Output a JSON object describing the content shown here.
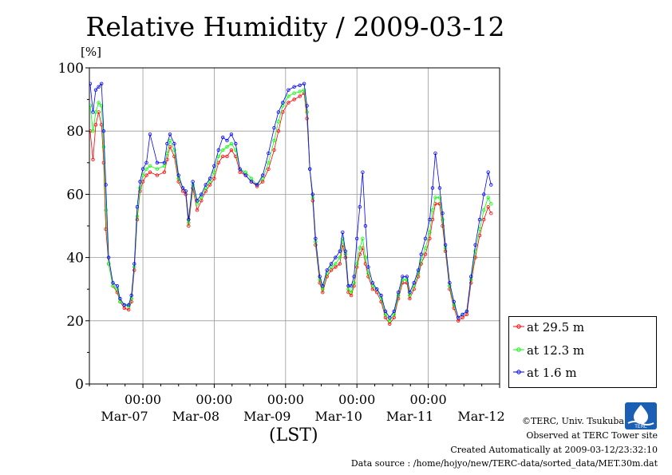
{
  "header": {
    "title": "Relative Humidity / 2009-03-12",
    "unit_label": "[%]",
    "x_axis_label": "(LST)"
  },
  "footer": {
    "copyright": "©TERC, Univ. Tsukuba",
    "observed": "Observed at TERC Tower site",
    "created": "Created Automatically at 2009-03-12/23:32:10",
    "source": "Data source : /home/hojyo/new/TERC-data/sorted_data/MET.30m.dat",
    "logo_text": "TERC"
  },
  "chart_data": {
    "type": "line",
    "title": "Relative Humidity / 2009-03-12",
    "xlabel": "(LST)",
    "ylabel": "[%]",
    "ylim": [
      0,
      100
    ],
    "xlim": [
      -0.75,
      5.0
    ],
    "x_unit": "days (0 = 2009-03-07 00:00)",
    "y_ticks": [
      0,
      20,
      40,
      60,
      80,
      100
    ],
    "x_ticks": [
      {
        "x": 0,
        "time": "00:00",
        "date": "Mar-07"
      },
      {
        "x": 1,
        "time": "00:00",
        "date": "Mar-08"
      },
      {
        "x": 2,
        "time": "00:00",
        "date": "Mar-09"
      },
      {
        "x": 3,
        "time": "00:00",
        "date": "Mar-10"
      },
      {
        "x": 4,
        "time": "00:00",
        "date": "Mar-11"
      },
      {
        "x": 5,
        "time": "",
        "date": "Mar-12"
      }
    ],
    "grid": true,
    "legend_position": "right, outside plot, lower",
    "series": [
      {
        "name": "at 29.5 m",
        "color": "#ff0000",
        "points": [
          [
            -0.74,
            80
          ],
          [
            -0.7,
            71
          ],
          [
            -0.66,
            82
          ],
          [
            -0.62,
            86
          ],
          [
            -0.58,
            82
          ],
          [
            -0.55,
            70
          ],
          [
            -0.52,
            49
          ],
          [
            -0.48,
            38
          ],
          [
            -0.42,
            31
          ],
          [
            -0.36,
            29
          ],
          [
            -0.32,
            26
          ],
          [
            -0.26,
            24
          ],
          [
            -0.2,
            23.5
          ],
          [
            -0.16,
            26
          ],
          [
            -0.12,
            36
          ],
          [
            -0.08,
            52
          ],
          [
            -0.04,
            61
          ],
          [
            0,
            64
          ],
          [
            0.05,
            66
          ],
          [
            0.1,
            67
          ],
          [
            0.2,
            66
          ],
          [
            0.3,
            67
          ],
          [
            0.34,
            71
          ],
          [
            0.38,
            75
          ],
          [
            0.44,
            72
          ],
          [
            0.5,
            64
          ],
          [
            0.56,
            61
          ],
          [
            0.6,
            60
          ],
          [
            0.64,
            50
          ],
          [
            0.7,
            62
          ],
          [
            0.76,
            55
          ],
          [
            0.82,
            58
          ],
          [
            0.88,
            61
          ],
          [
            0.94,
            63
          ],
          [
            1,
            65
          ],
          [
            1.06,
            70
          ],
          [
            1.12,
            72
          ],
          [
            1.18,
            72
          ],
          [
            1.24,
            74
          ],
          [
            1.3,
            72
          ],
          [
            1.36,
            67
          ],
          [
            1.44,
            66
          ],
          [
            1.52,
            64
          ],
          [
            1.6,
            62.5
          ],
          [
            1.68,
            64
          ],
          [
            1.76,
            68
          ],
          [
            1.84,
            74
          ],
          [
            1.9,
            80
          ],
          [
            1.96,
            86
          ],
          [
            2.04,
            89
          ],
          [
            2.12,
            90
          ],
          [
            2.2,
            91
          ],
          [
            2.26,
            92
          ],
          [
            2.3,
            84
          ],
          [
            2.34,
            68
          ],
          [
            2.38,
            58
          ],
          [
            2.42,
            44
          ],
          [
            2.48,
            32
          ],
          [
            2.52,
            29
          ],
          [
            2.58,
            34
          ],
          [
            2.64,
            36
          ],
          [
            2.7,
            37
          ],
          [
            2.76,
            38
          ],
          [
            2.8,
            44
          ],
          [
            2.84,
            40
          ],
          [
            2.88,
            29
          ],
          [
            2.92,
            28
          ],
          [
            2.96,
            31
          ],
          [
            3,
            37
          ],
          [
            3.04,
            41
          ],
          [
            3.08,
            43
          ],
          [
            3.12,
            38
          ],
          [
            3.16,
            34
          ],
          [
            3.22,
            30
          ],
          [
            3.28,
            29
          ],
          [
            3.34,
            26
          ],
          [
            3.4,
            21
          ],
          [
            3.46,
            19
          ],
          [
            3.52,
            21
          ],
          [
            3.58,
            27
          ],
          [
            3.64,
            32
          ],
          [
            3.7,
            32
          ],
          [
            3.74,
            27
          ],
          [
            3.8,
            30
          ],
          [
            3.86,
            34
          ],
          [
            3.9,
            38
          ],
          [
            3.96,
            41
          ],
          [
            4.02,
            46
          ],
          [
            4.06,
            52
          ],
          [
            4.1,
            57
          ],
          [
            4.16,
            57
          ],
          [
            4.2,
            50
          ],
          [
            4.24,
            42
          ],
          [
            4.3,
            30
          ],
          [
            4.36,
            24
          ],
          [
            4.42,
            20
          ],
          [
            4.48,
            21
          ],
          [
            4.54,
            22
          ],
          [
            4.6,
            32
          ],
          [
            4.66,
            40
          ],
          [
            4.72,
            47
          ],
          [
            4.78,
            52
          ],
          [
            4.84,
            56
          ],
          [
            4.88,
            54
          ]
        ]
      },
      {
        "name": "at 12.3 m",
        "color": "#00ff00",
        "points": [
          [
            -0.74,
            88
          ],
          [
            -0.7,
            80
          ],
          [
            -0.66,
            86
          ],
          [
            -0.62,
            89
          ],
          [
            -0.58,
            88
          ],
          [
            -0.55,
            75
          ],
          [
            -0.52,
            55
          ],
          [
            -0.48,
            38
          ],
          [
            -0.42,
            31
          ],
          [
            -0.36,
            30
          ],
          [
            -0.32,
            26
          ],
          [
            -0.26,
            25
          ],
          [
            -0.2,
            24.5
          ],
          [
            -0.16,
            27
          ],
          [
            -0.12,
            37
          ],
          [
            -0.08,
            53
          ],
          [
            -0.04,
            62
          ],
          [
            0,
            66
          ],
          [
            0.05,
            68
          ],
          [
            0.1,
            69
          ],
          [
            0.2,
            68
          ],
          [
            0.3,
            69
          ],
          [
            0.34,
            73
          ],
          [
            0.38,
            77
          ],
          [
            0.44,
            74
          ],
          [
            0.5,
            65
          ],
          [
            0.56,
            62
          ],
          [
            0.6,
            61
          ],
          [
            0.64,
            51
          ],
          [
            0.7,
            63
          ],
          [
            0.76,
            57
          ],
          [
            0.82,
            59
          ],
          [
            0.88,
            62
          ],
          [
            0.94,
            64
          ],
          [
            1,
            67
          ],
          [
            1.06,
            72
          ],
          [
            1.12,
            74
          ],
          [
            1.18,
            75
          ],
          [
            1.24,
            76
          ],
          [
            1.3,
            74
          ],
          [
            1.36,
            68
          ],
          [
            1.44,
            67
          ],
          [
            1.52,
            65
          ],
          [
            1.6,
            63
          ],
          [
            1.68,
            65
          ],
          [
            1.76,
            70
          ],
          [
            1.84,
            77
          ],
          [
            1.9,
            83
          ],
          [
            1.96,
            88
          ],
          [
            2.04,
            91
          ],
          [
            2.12,
            92
          ],
          [
            2.2,
            92.5
          ],
          [
            2.26,
            93
          ],
          [
            2.3,
            86
          ],
          [
            2.34,
            68
          ],
          [
            2.38,
            59
          ],
          [
            2.42,
            45
          ],
          [
            2.48,
            33
          ],
          [
            2.52,
            30
          ],
          [
            2.58,
            35
          ],
          [
            2.64,
            37
          ],
          [
            2.7,
            38
          ],
          [
            2.76,
            40
          ],
          [
            2.8,
            46
          ],
          [
            2.84,
            41
          ],
          [
            2.88,
            30
          ],
          [
            2.92,
            29
          ],
          [
            2.96,
            32
          ],
          [
            3,
            38
          ],
          [
            3.04,
            43
          ],
          [
            3.08,
            46
          ],
          [
            3.12,
            40
          ],
          [
            3.16,
            35
          ],
          [
            3.22,
            31
          ],
          [
            3.28,
            30
          ],
          [
            3.34,
            27
          ],
          [
            3.4,
            22
          ],
          [
            3.46,
            20
          ],
          [
            3.52,
            22
          ],
          [
            3.58,
            28
          ],
          [
            3.64,
            33
          ],
          [
            3.7,
            33
          ],
          [
            3.74,
            28
          ],
          [
            3.8,
            31
          ],
          [
            3.86,
            35
          ],
          [
            3.9,
            39
          ],
          [
            3.96,
            43
          ],
          [
            4.02,
            48
          ],
          [
            4.06,
            55
          ],
          [
            4.1,
            59
          ],
          [
            4.16,
            59
          ],
          [
            4.2,
            52
          ],
          [
            4.24,
            43
          ],
          [
            4.3,
            31
          ],
          [
            4.36,
            25
          ],
          [
            4.42,
            21
          ],
          [
            4.48,
            22
          ],
          [
            4.54,
            23
          ],
          [
            4.6,
            33
          ],
          [
            4.66,
            42
          ],
          [
            4.72,
            49
          ],
          [
            4.78,
            55
          ],
          [
            4.84,
            59
          ],
          [
            4.88,
            57
          ]
        ]
      },
      {
        "name": "at 1.6 m",
        "color": "#0000ff",
        "points": [
          [
            -0.74,
            95
          ],
          [
            -0.7,
            86
          ],
          [
            -0.66,
            93
          ],
          [
            -0.62,
            94
          ],
          [
            -0.58,
            95
          ],
          [
            -0.55,
            80
          ],
          [
            -0.52,
            63
          ],
          [
            -0.48,
            40
          ],
          [
            -0.42,
            32
          ],
          [
            -0.36,
            31
          ],
          [
            -0.32,
            27
          ],
          [
            -0.26,
            25
          ],
          [
            -0.2,
            25
          ],
          [
            -0.16,
            28
          ],
          [
            -0.12,
            38
          ],
          [
            -0.08,
            56
          ],
          [
            -0.04,
            64
          ],
          [
            0,
            68
          ],
          [
            0.05,
            70
          ],
          [
            0.1,
            79
          ],
          [
            0.2,
            70
          ],
          [
            0.3,
            70
          ],
          [
            0.34,
            76
          ],
          [
            0.38,
            79
          ],
          [
            0.44,
            76
          ],
          [
            0.5,
            66
          ],
          [
            0.56,
            62
          ],
          [
            0.6,
            61
          ],
          [
            0.64,
            52
          ],
          [
            0.7,
            64
          ],
          [
            0.76,
            58
          ],
          [
            0.82,
            60
          ],
          [
            0.88,
            63
          ],
          [
            0.94,
            65
          ],
          [
            1,
            69
          ],
          [
            1.06,
            74
          ],
          [
            1.12,
            78
          ],
          [
            1.18,
            77
          ],
          [
            1.24,
            79
          ],
          [
            1.3,
            76
          ],
          [
            1.36,
            68
          ],
          [
            1.44,
            66
          ],
          [
            1.52,
            64
          ],
          [
            1.6,
            63
          ],
          [
            1.68,
            66
          ],
          [
            1.76,
            73
          ],
          [
            1.84,
            81
          ],
          [
            1.9,
            86
          ],
          [
            1.96,
            89
          ],
          [
            2.04,
            93
          ],
          [
            2.12,
            94
          ],
          [
            2.2,
            94.5
          ],
          [
            2.26,
            95
          ],
          [
            2.3,
            88
          ],
          [
            2.34,
            68
          ],
          [
            2.38,
            60
          ],
          [
            2.42,
            46
          ],
          [
            2.48,
            34
          ],
          [
            2.52,
            31
          ],
          [
            2.58,
            36
          ],
          [
            2.64,
            38
          ],
          [
            2.7,
            40
          ],
          [
            2.76,
            42
          ],
          [
            2.8,
            48
          ],
          [
            2.84,
            42
          ],
          [
            2.88,
            31
          ],
          [
            2.92,
            31
          ],
          [
            2.96,
            34
          ],
          [
            3,
            46
          ],
          [
            3.04,
            56
          ],
          [
            3.08,
            67
          ],
          [
            3.12,
            50
          ],
          [
            3.16,
            37
          ],
          [
            3.22,
            32
          ],
          [
            3.28,
            30
          ],
          [
            3.34,
            28
          ],
          [
            3.4,
            23
          ],
          [
            3.46,
            21
          ],
          [
            3.52,
            23
          ],
          [
            3.58,
            29
          ],
          [
            3.64,
            34
          ],
          [
            3.7,
            34
          ],
          [
            3.74,
            29
          ],
          [
            3.8,
            32
          ],
          [
            3.86,
            36
          ],
          [
            3.9,
            41
          ],
          [
            3.96,
            46
          ],
          [
            4.02,
            52
          ],
          [
            4.06,
            62
          ],
          [
            4.1,
            73
          ],
          [
            4.16,
            62
          ],
          [
            4.2,
            54
          ],
          [
            4.24,
            44
          ],
          [
            4.3,
            32
          ],
          [
            4.36,
            26
          ],
          [
            4.42,
            21
          ],
          [
            4.48,
            22
          ],
          [
            4.54,
            23
          ],
          [
            4.6,
            34
          ],
          [
            4.66,
            44
          ],
          [
            4.72,
            52
          ],
          [
            4.78,
            60
          ],
          [
            4.84,
            67
          ],
          [
            4.88,
            63
          ]
        ]
      }
    ]
  }
}
